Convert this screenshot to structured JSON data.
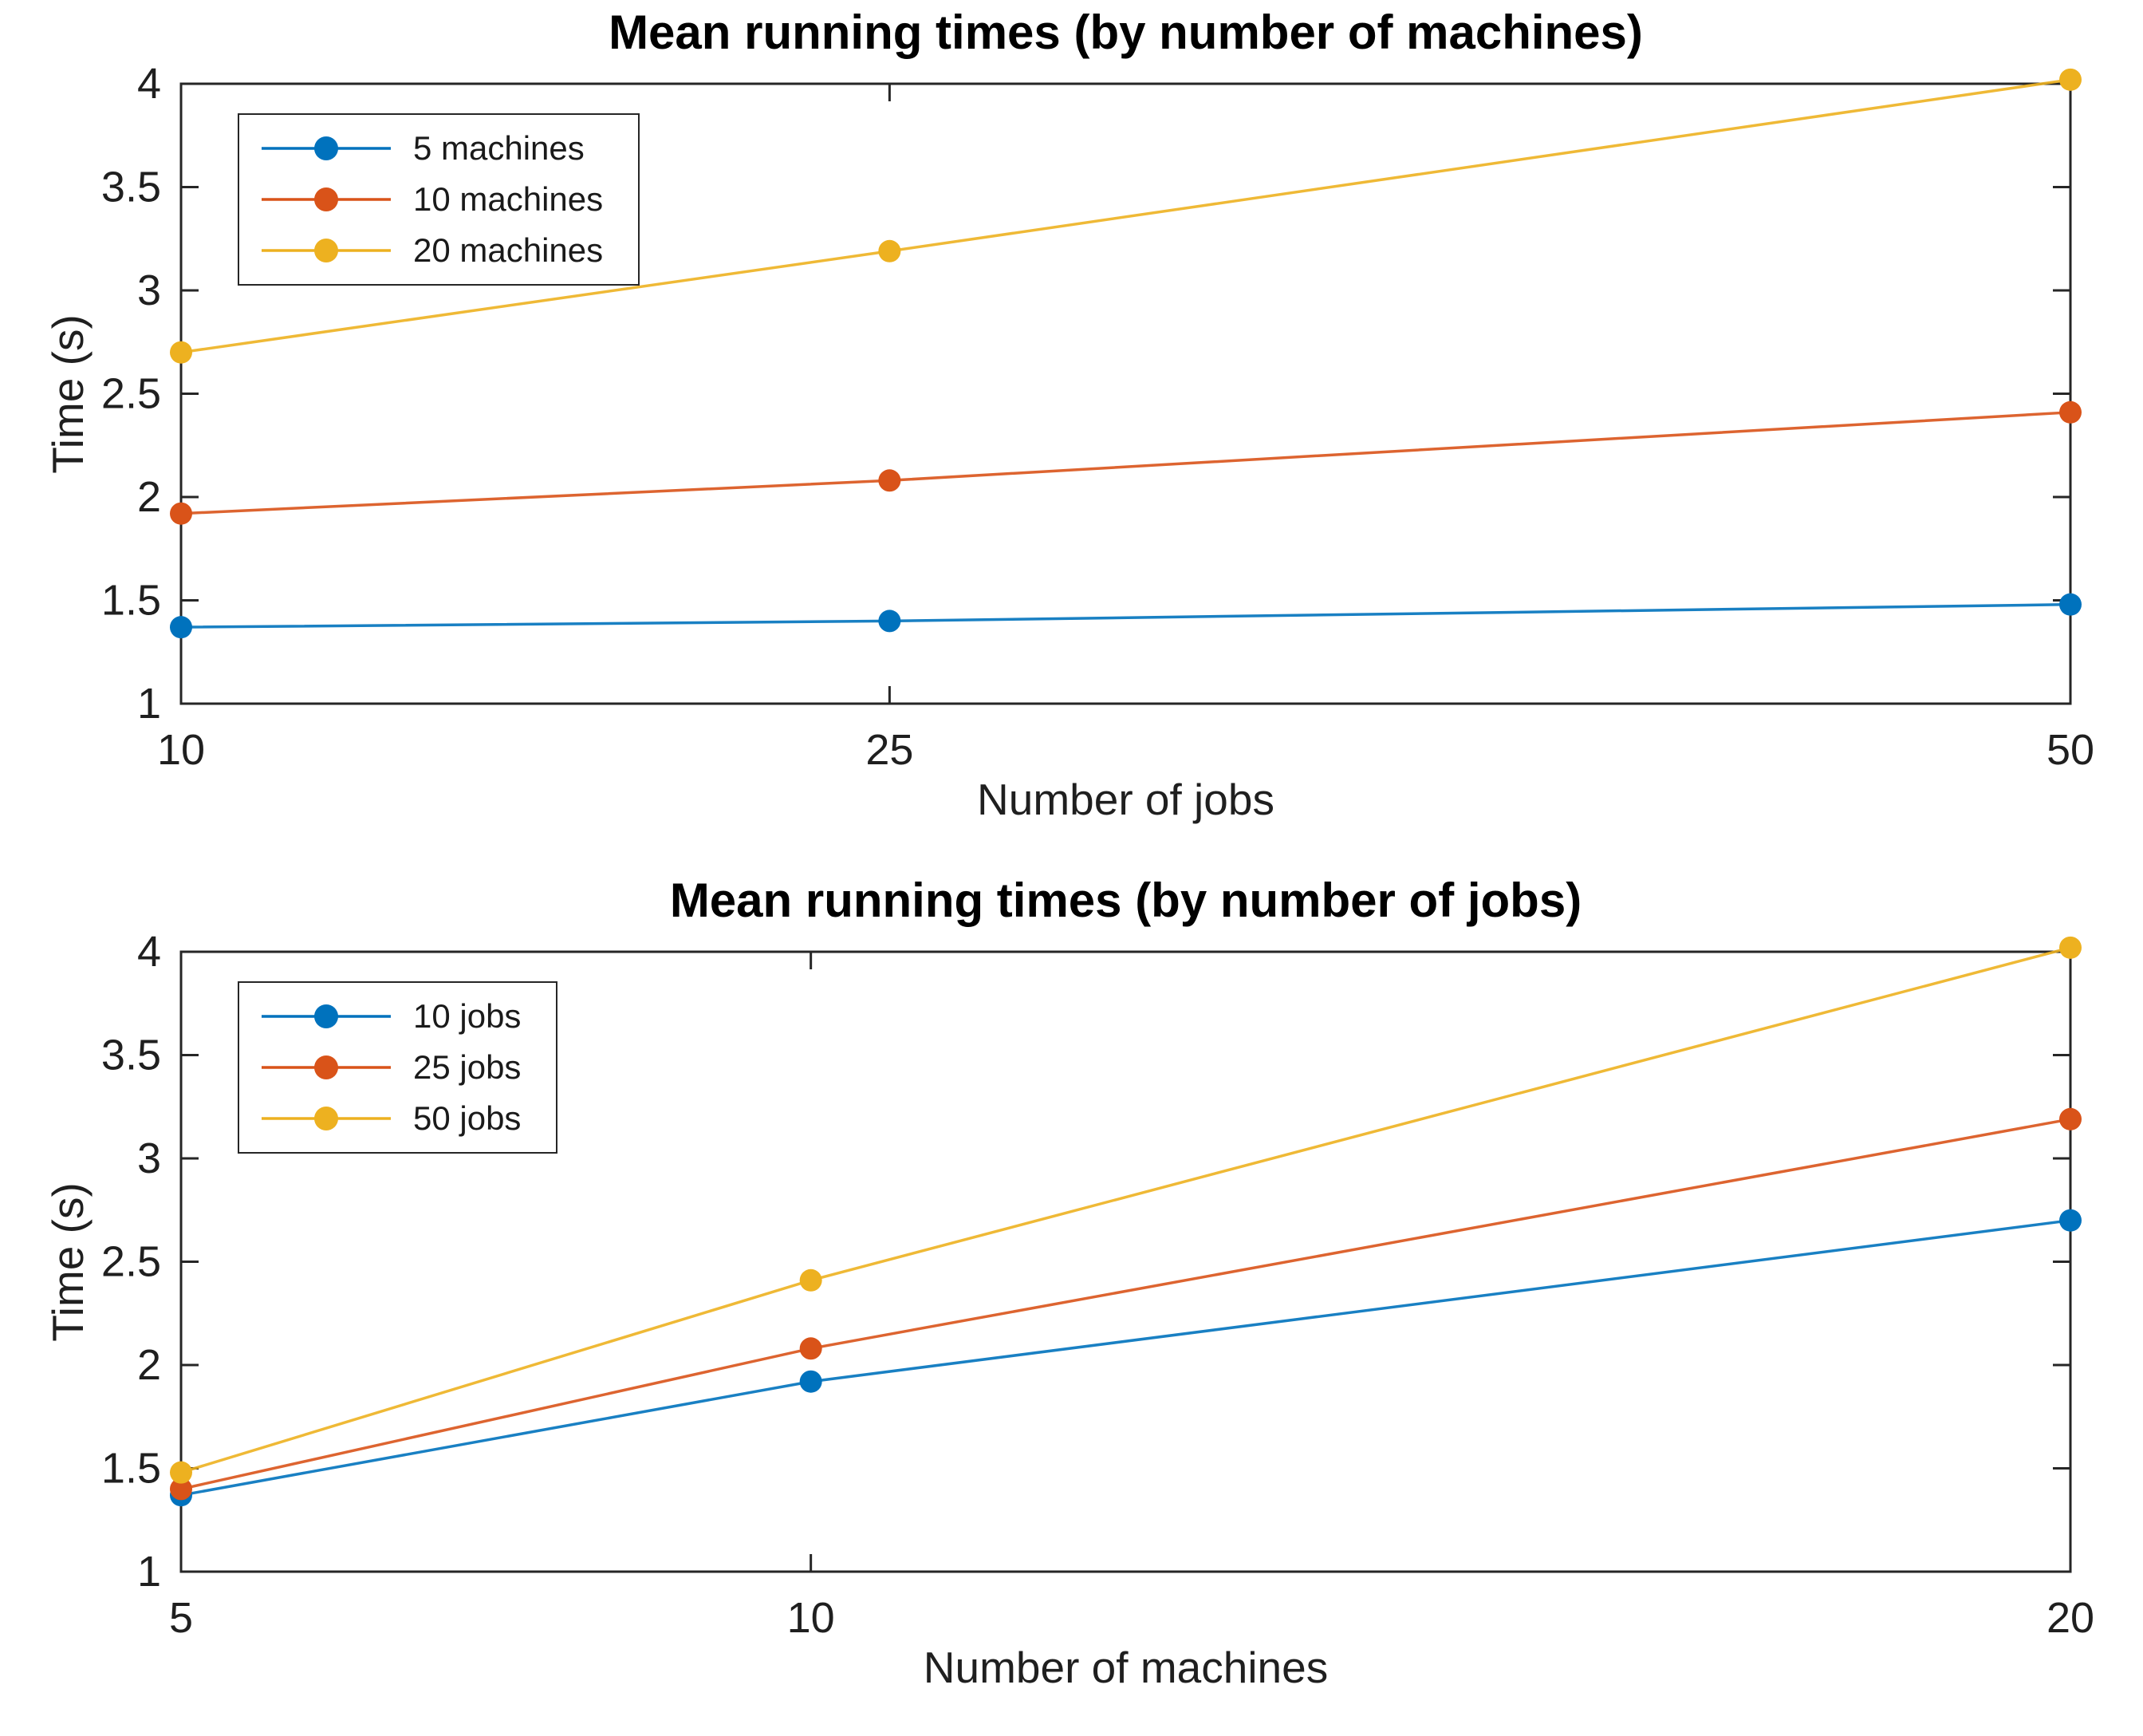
{
  "figure": {
    "background": "#ffffff",
    "axis_color": "#262626",
    "text_color": "#1f1f1f"
  },
  "chart_data": [
    {
      "type": "line",
      "title": "Mean running times (by number of machines)",
      "xlabel": "Number of jobs",
      "ylabel": "Time (s)",
      "x": [
        10,
        25,
        50
      ],
      "xticks": [
        10,
        25,
        50
      ],
      "xlim": [
        10,
        50
      ],
      "yticks": [
        1,
        1.5,
        2,
        2.5,
        3,
        3.5,
        4
      ],
      "ylim": [
        1,
        4
      ],
      "grid": false,
      "box": true,
      "legend_position": "top-left",
      "series": [
        {
          "name": "5 machines",
          "color": "#0072BD",
          "values": [
            1.37,
            1.4,
            1.48
          ]
        },
        {
          "name": "10 machines",
          "color": "#D95319",
          "values": [
            1.92,
            2.08,
            2.41
          ]
        },
        {
          "name": "20 machines",
          "color": "#EDB120",
          "values": [
            2.7,
            3.19,
            4.02
          ]
        }
      ]
    },
    {
      "type": "line",
      "title": "Mean running times (by number of jobs)",
      "xlabel": "Number of machines",
      "ylabel": "Time (s)",
      "x": [
        5,
        10,
        20
      ],
      "xticks": [
        5,
        10,
        20
      ],
      "xlim": [
        5,
        20
      ],
      "yticks": [
        1,
        1.5,
        2,
        2.5,
        3,
        3.5,
        4
      ],
      "ylim": [
        1,
        4
      ],
      "grid": false,
      "box": true,
      "legend_position": "top-left",
      "series": [
        {
          "name": "10 jobs",
          "color": "#0072BD",
          "values": [
            1.37,
            1.92,
            2.7
          ]
        },
        {
          "name": "25 jobs",
          "color": "#D95319",
          "values": [
            1.4,
            2.08,
            3.19
          ]
        },
        {
          "name": "50 jobs",
          "color": "#EDB120",
          "values": [
            1.48,
            2.41,
            4.02
          ]
        }
      ]
    }
  ]
}
